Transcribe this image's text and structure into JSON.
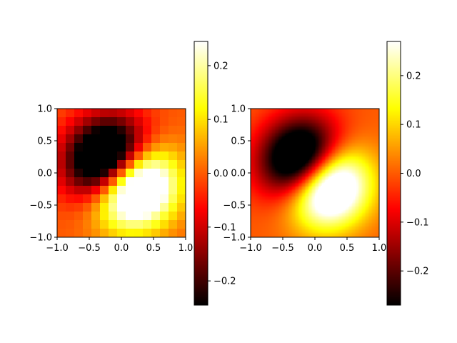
{
  "figure": {
    "background": "#ffffff"
  },
  "chart_data": [
    {
      "type": "heatmap",
      "panel": "left",
      "render": "pixelated",
      "grid_cells": 15,
      "colormap": "hot",
      "function": "(x - y) * exp(-(x^2 + y^2) * 2.5)",
      "xlim": [
        -1.0,
        1.0
      ],
      "ylim": [
        -1.0,
        1.0
      ],
      "x_ticks": [
        "−1.0",
        "−0.5",
        "0.0",
        "0.5",
        "1.0"
      ],
      "x_tick_values": [
        -1.0,
        -0.5,
        0.0,
        0.5,
        1.0
      ],
      "y_ticks": [
        "−1.0",
        "−0.5",
        "0.0",
        "0.5",
        "1.0"
      ],
      "y_tick_values": [
        -1.0,
        -0.5,
        0.0,
        0.5,
        1.0
      ],
      "colorbar": {
        "vmin": -0.245,
        "vmax": 0.245,
        "ticks": [
          "−0.2",
          "−0.1",
          "0.0",
          "0.1",
          "0.2"
        ],
        "tick_values": [
          -0.2,
          -0.1,
          0.0,
          0.1,
          0.2
        ]
      }
    },
    {
      "type": "heatmap",
      "panel": "right",
      "render": "smooth",
      "grid_cells": 90,
      "colormap": "hot",
      "function": "(x - y) * exp(-(x^2 + y^2) * 2.5)",
      "xlim": [
        -1.0,
        1.0
      ],
      "ylim": [
        -1.0,
        1.0
      ],
      "x_ticks": [
        "−1.0",
        "−0.5",
        "0.0",
        "0.5",
        "1.0"
      ],
      "x_tick_values": [
        -1.0,
        -0.5,
        0.0,
        0.5,
        1.0
      ],
      "y_ticks": [
        "−1.0",
        "−0.5",
        "0.0",
        "0.5",
        "1.0"
      ],
      "y_tick_values": [
        -1.0,
        -0.5,
        0.0,
        0.5,
        1.0
      ],
      "colorbar": {
        "vmin": -0.27,
        "vmax": 0.27,
        "ticks": [
          "−0.2",
          "−0.1",
          "0.0",
          "0.1",
          "0.2"
        ],
        "tick_values": [
          -0.2,
          -0.1,
          0.0,
          0.1,
          0.2
        ]
      }
    }
  ]
}
